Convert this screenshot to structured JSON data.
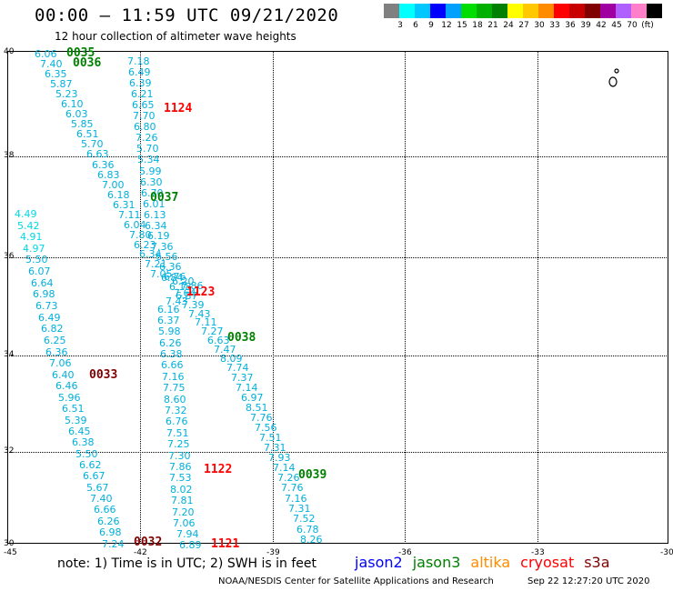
{
  "header": {
    "title": "00:00 – 11:59 UTC 09/21/2020",
    "subtitle": "12 hour collection of altimeter wave heights"
  },
  "legend": {
    "colors": [
      "#808080",
      "#00ffff",
      "#00c8ff",
      "#0000ff",
      "#00a0ff",
      "#00dd00",
      "#00b000",
      "#008000",
      "#ffff00",
      "#ffc800",
      "#ff8c00",
      "#ff0000",
      "#c80000",
      "#800000",
      "#a000a0",
      "#b060ff",
      "#ff80c8",
      "#000000"
    ],
    "labels": [
      "3",
      "6",
      "9",
      "12",
      "15",
      "18",
      "21",
      "24",
      "27",
      "30",
      "33",
      "36",
      "39",
      "42",
      "45",
      "70",
      "(ft)"
    ]
  },
  "axes": {
    "lat_labels": [
      "40",
      "38",
      "36",
      "34",
      "32",
      "30"
    ],
    "lon_labels": [
      "-45",
      "-42",
      "-39",
      "-36",
      "-33",
      "-30"
    ]
  },
  "tracks": [
    {
      "name": "west",
      "samples": [
        "6.06",
        "7.40",
        "6.35",
        "5.87",
        "5.23",
        "6.10",
        "6.03",
        "5.85",
        "6.51",
        "5.70",
        "6.63",
        "6.36",
        "6.83",
        "7.00",
        "6.18",
        "6.31",
        "7.11",
        "6.04",
        "7.80",
        "6.23",
        "6.34",
        "7.21",
        "7.05",
        "6.84",
        "6.20",
        "7.86",
        "7.64",
        "7.43",
        "6.16",
        "6.37",
        "5.98",
        "6.26",
        "6.38",
        "6.66",
        "7.16",
        "7.75",
        "8.60",
        "7.32",
        "6.76",
        "7.51",
        "7.25",
        "7.30",
        "7.86",
        "7.53",
        "8.02",
        "7.81",
        "7.20",
        "7.06",
        "7.94",
        "6.89"
      ]
    },
    {
      "name": "central",
      "samples": [
        "7.18",
        "6.49",
        "6.39",
        "6.21",
        "6.65",
        "7.70",
        "6.80",
        "7.26",
        "5.70",
        "5.34",
        "5.99",
        "6.30",
        "6.70",
        "6.01",
        "6.13",
        "6.34",
        "6.19",
        "7.36",
        "6.56",
        "6.36",
        "6.76",
        "6.18",
        "6.87",
        "7.39",
        "7.43",
        "7.11",
        "7.27",
        "6.63",
        "7.47",
        "8.09",
        "7.74",
        "7.37",
        "7.14",
        "6.97",
        "8.51",
        "7.76",
        "7.56",
        "7.51",
        "7.31",
        "7.93",
        "7.14",
        "7.26",
        "7.76",
        "7.16",
        "7.31",
        "7.52",
        "6.78",
        "8.26"
      ]
    },
    {
      "name": "far-west",
      "samples": [
        "4.49",
        "5.42",
        "4.91",
        "4.97",
        "5.50",
        "6.07",
        "6.64",
        "6.98",
        "6.73",
        "6.49",
        "6.82",
        "6.25",
        "6.36",
        "7.06",
        "6.40",
        "6.46",
        "5.96",
        "6.51",
        "5.39",
        "6.45",
        "6.38",
        "5.50",
        "6.62",
        "6.67",
        "5.67",
        "7.40",
        "6.66",
        "6.26",
        "6.98",
        "7.24"
      ]
    }
  ],
  "time_tags": [
    {
      "label": "0035",
      "color": "#008000"
    },
    {
      "label": "0036",
      "color": "#008000"
    },
    {
      "label": "1124",
      "color": "#ff0000"
    },
    {
      "label": "0037",
      "color": "#008000"
    },
    {
      "label": "1123",
      "color": "#ff0000"
    },
    {
      "label": "0038",
      "color": "#008000"
    },
    {
      "label": "0033",
      "color": "#800000"
    },
    {
      "label": "1122",
      "color": "#ff0000"
    },
    {
      "label": "0039",
      "color": "#008000"
    },
    {
      "label": "0032",
      "color": "#800000"
    },
    {
      "label": "1121",
      "color": "#ff0000"
    }
  ],
  "footer": {
    "note": "note: 1) Time is in UTC; 2) SWH is in feet",
    "missions": [
      {
        "name": "jason2",
        "color": "#0000ff"
      },
      {
        "name": "jason3",
        "color": "#008000"
      },
      {
        "name": "altika",
        "color": "#ff8c00"
      },
      {
        "name": "cryosat",
        "color": "#ff0000"
      },
      {
        "name": "s3a",
        "color": "#800000"
      }
    ],
    "credits": "NOAA/NESDIS Center for Satellite Applications and Research",
    "timestamp": "Sep 22 12:27:20 UTC 2020"
  }
}
